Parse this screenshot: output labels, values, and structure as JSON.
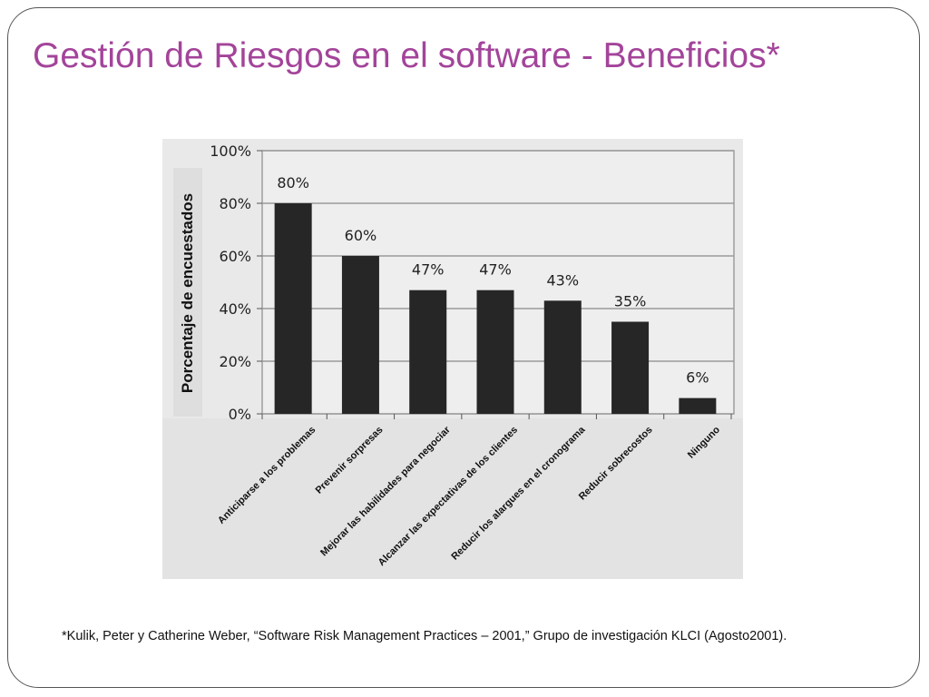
{
  "slide": {
    "title": "Gestión de Riesgos en el software - Beneficios*",
    "footnote": "*Kulik, Peter y Catherine Weber, “Software Risk Management Practices – 2001,” Grupo de investigación KLCI (Agosto2001)."
  },
  "chart_data": {
    "type": "bar",
    "ylabel": "Porcentaje de encuestados",
    "categories": [
      "Anticiparse a los problemas",
      "Prevenir sorpresas",
      "Mejorar las habilidades para negociar",
      "Alcanzar las expectativas de los clientes",
      "Reducir los alargues en el cronograma",
      "Reducir sobrecostos",
      "Ninguno"
    ],
    "values": [
      80,
      60,
      47,
      47,
      43,
      35,
      6
    ],
    "data_labels": [
      "80%",
      "60%",
      "47%",
      "47%",
      "43%",
      "35%",
      "6%"
    ],
    "yticks": [
      {
        "value": 0,
        "label": "0%"
      },
      {
        "value": 20,
        "label": "20%"
      },
      {
        "value": 40,
        "label": "40%"
      },
      {
        "value": 60,
        "label": "60%"
      },
      {
        "value": 80,
        "label": "80%"
      },
      {
        "value": 100,
        "label": "100%"
      }
    ],
    "ylim": [
      0,
      100
    ],
    "grid": true,
    "colors": {
      "bar": "#262626",
      "plot_background": "#eeeeee",
      "figure_background": "#e3e3e3",
      "gridline": "#9a9a9a"
    }
  }
}
